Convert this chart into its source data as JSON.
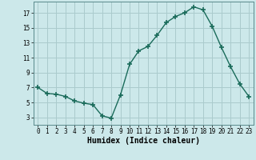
{
  "x": [
    0,
    1,
    2,
    3,
    4,
    5,
    6,
    7,
    8,
    9,
    10,
    11,
    12,
    13,
    14,
    15,
    16,
    17,
    18,
    19,
    20,
    21,
    22,
    23
  ],
  "y": [
    7.0,
    6.2,
    6.1,
    5.8,
    5.2,
    4.9,
    4.7,
    3.2,
    2.9,
    6.0,
    10.1,
    11.9,
    12.5,
    14.0,
    15.7,
    16.5,
    17.0,
    17.8,
    17.4,
    15.2,
    12.4,
    9.8,
    7.5,
    5.8
  ],
  "line_color": "#1a6b5a",
  "bg_color": "#cce8ea",
  "grid_color": "#aacbcd",
  "xlabel": "Humidex (Indice chaleur)",
  "xlabel_fontsize": 7,
  "yticks": [
    3,
    5,
    7,
    9,
    11,
    13,
    15,
    17
  ],
  "xticks": [
    0,
    1,
    2,
    3,
    4,
    5,
    6,
    7,
    8,
    9,
    10,
    11,
    12,
    13,
    14,
    15,
    16,
    17,
    18,
    19,
    20,
    21,
    22,
    23
  ],
  "ylim": [
    2.0,
    18.5
  ],
  "xlim": [
    -0.5,
    23.5
  ],
  "tick_fontsize": 5.5
}
